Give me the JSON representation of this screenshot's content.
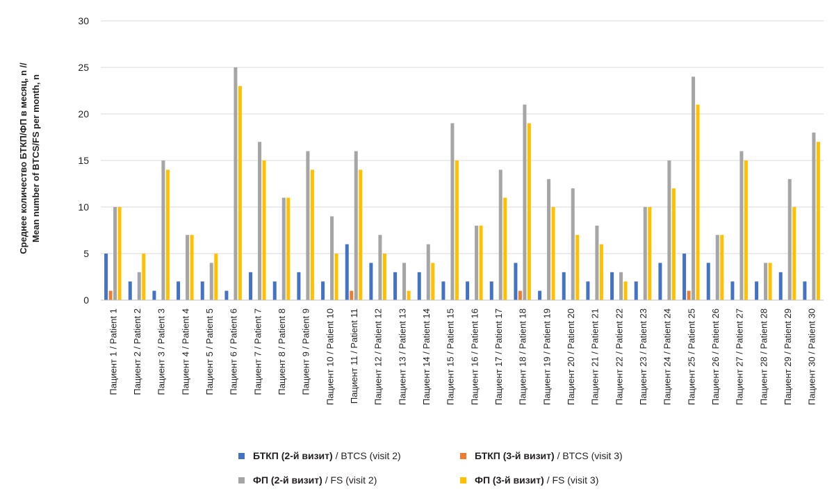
{
  "chart_data": {
    "type": "bar",
    "ylabel_line1": "Среднее количество БТКП/ФП в месяц, n //",
    "ylabel_line2": "Mean number of BTCS/FS per month, n",
    "ylim": [
      0,
      30
    ],
    "yticks": [
      0,
      5,
      10,
      15,
      20,
      25,
      30
    ],
    "grid": true,
    "legend_position": "bottom",
    "categories": [
      "Пациент 1 / Patient 1",
      "Пациент 2 / Patient 2",
      "Пациент 3 / Patient 3",
      "Пациент 4 / Patient 4",
      "Пациент 5 / Patient 5",
      "Пациент 6 / Patient 6",
      "Пациент 7 / Patient 7",
      "Пациент 8 / Patient 8",
      "Пациент 9 / Patient 9",
      "Пациент 10 / Patient 10",
      "Пациент 11 / Patient 11",
      "Пациент 12 / Patient 12",
      "Пациент 13 / Patient 13",
      "Пациент 14 / Patient 14",
      "Пациент 15 / Patient 15",
      "Пациент 16 / Patient 16",
      "Пациент 17 / Patient 17",
      "Пациент 18 / Patient 18",
      "Пациент 19 / Patient 19",
      "Пациент 20 / Patient 20",
      "Пациент 21 / Patient 21",
      "Пациент 22 / Patient 22",
      "Пациент 23 / Patient 23",
      "Пациент 24 / Patient 24",
      "Пациент 25 / Patient 25",
      "Пациент 26 / Patient 26",
      "Пациент 27 / Patient 27",
      "Пациент 28 / Patient 28",
      "Пациент 29 / Patient 29",
      "Пациент 30 / Patient 30"
    ],
    "series": [
      {
        "name": "БТКП (2-й визит) / BTCS (visit 2)",
        "name_ru": "БТКП (2-й визит)",
        "name_en": "/ BTCS (visit 2)",
        "color": "#4472c4",
        "values": [
          5,
          2,
          1,
          2,
          2,
          1,
          3,
          2,
          3,
          2,
          6,
          4,
          3,
          3,
          2,
          2,
          2,
          4,
          1,
          3,
          2,
          3,
          2,
          4,
          5,
          4,
          2,
          2,
          3,
          2
        ]
      },
      {
        "name": "БТКП (3-й визит) / BTCS (visit 3)",
        "name_ru": "БТКП (3-й визит)",
        "name_en": "/ BTCS (visit 3)",
        "color": "#ed7d31",
        "values": [
          1,
          0,
          0,
          0,
          0,
          0,
          0,
          0,
          0,
          0,
          1,
          0,
          0,
          0,
          0,
          0,
          0,
          1,
          0,
          0,
          0,
          0,
          0,
          0,
          1,
          0,
          0,
          0,
          0,
          0
        ]
      },
      {
        "name": "ФП (2-й визит) / FS (visit 2)",
        "name_ru": "ФП (2-й визит)",
        "name_en": "/ FS (visit 2)",
        "color": "#a5a5a5",
        "values": [
          10,
          3,
          15,
          7,
          4,
          25,
          17,
          11,
          16,
          9,
          16,
          7,
          4,
          6,
          19,
          8,
          14,
          21,
          13,
          12,
          8,
          3,
          10,
          15,
          24,
          7,
          16,
          4,
          13,
          18
        ]
      },
      {
        "name": "ФП (3-й визит) / FS (visit 3)",
        "name_ru": "ФП (3-й визит)",
        "name_en": "/ FS (visit 3)",
        "color": "#ffc000",
        "values": [
          10,
          5,
          14,
          7,
          5,
          23,
          15,
          11,
          14,
          5,
          14,
          5,
          1,
          4,
          15,
          8,
          11,
          19,
          10,
          7,
          6,
          2,
          10,
          12,
          21,
          7,
          15,
          4,
          10,
          17
        ]
      }
    ]
  }
}
